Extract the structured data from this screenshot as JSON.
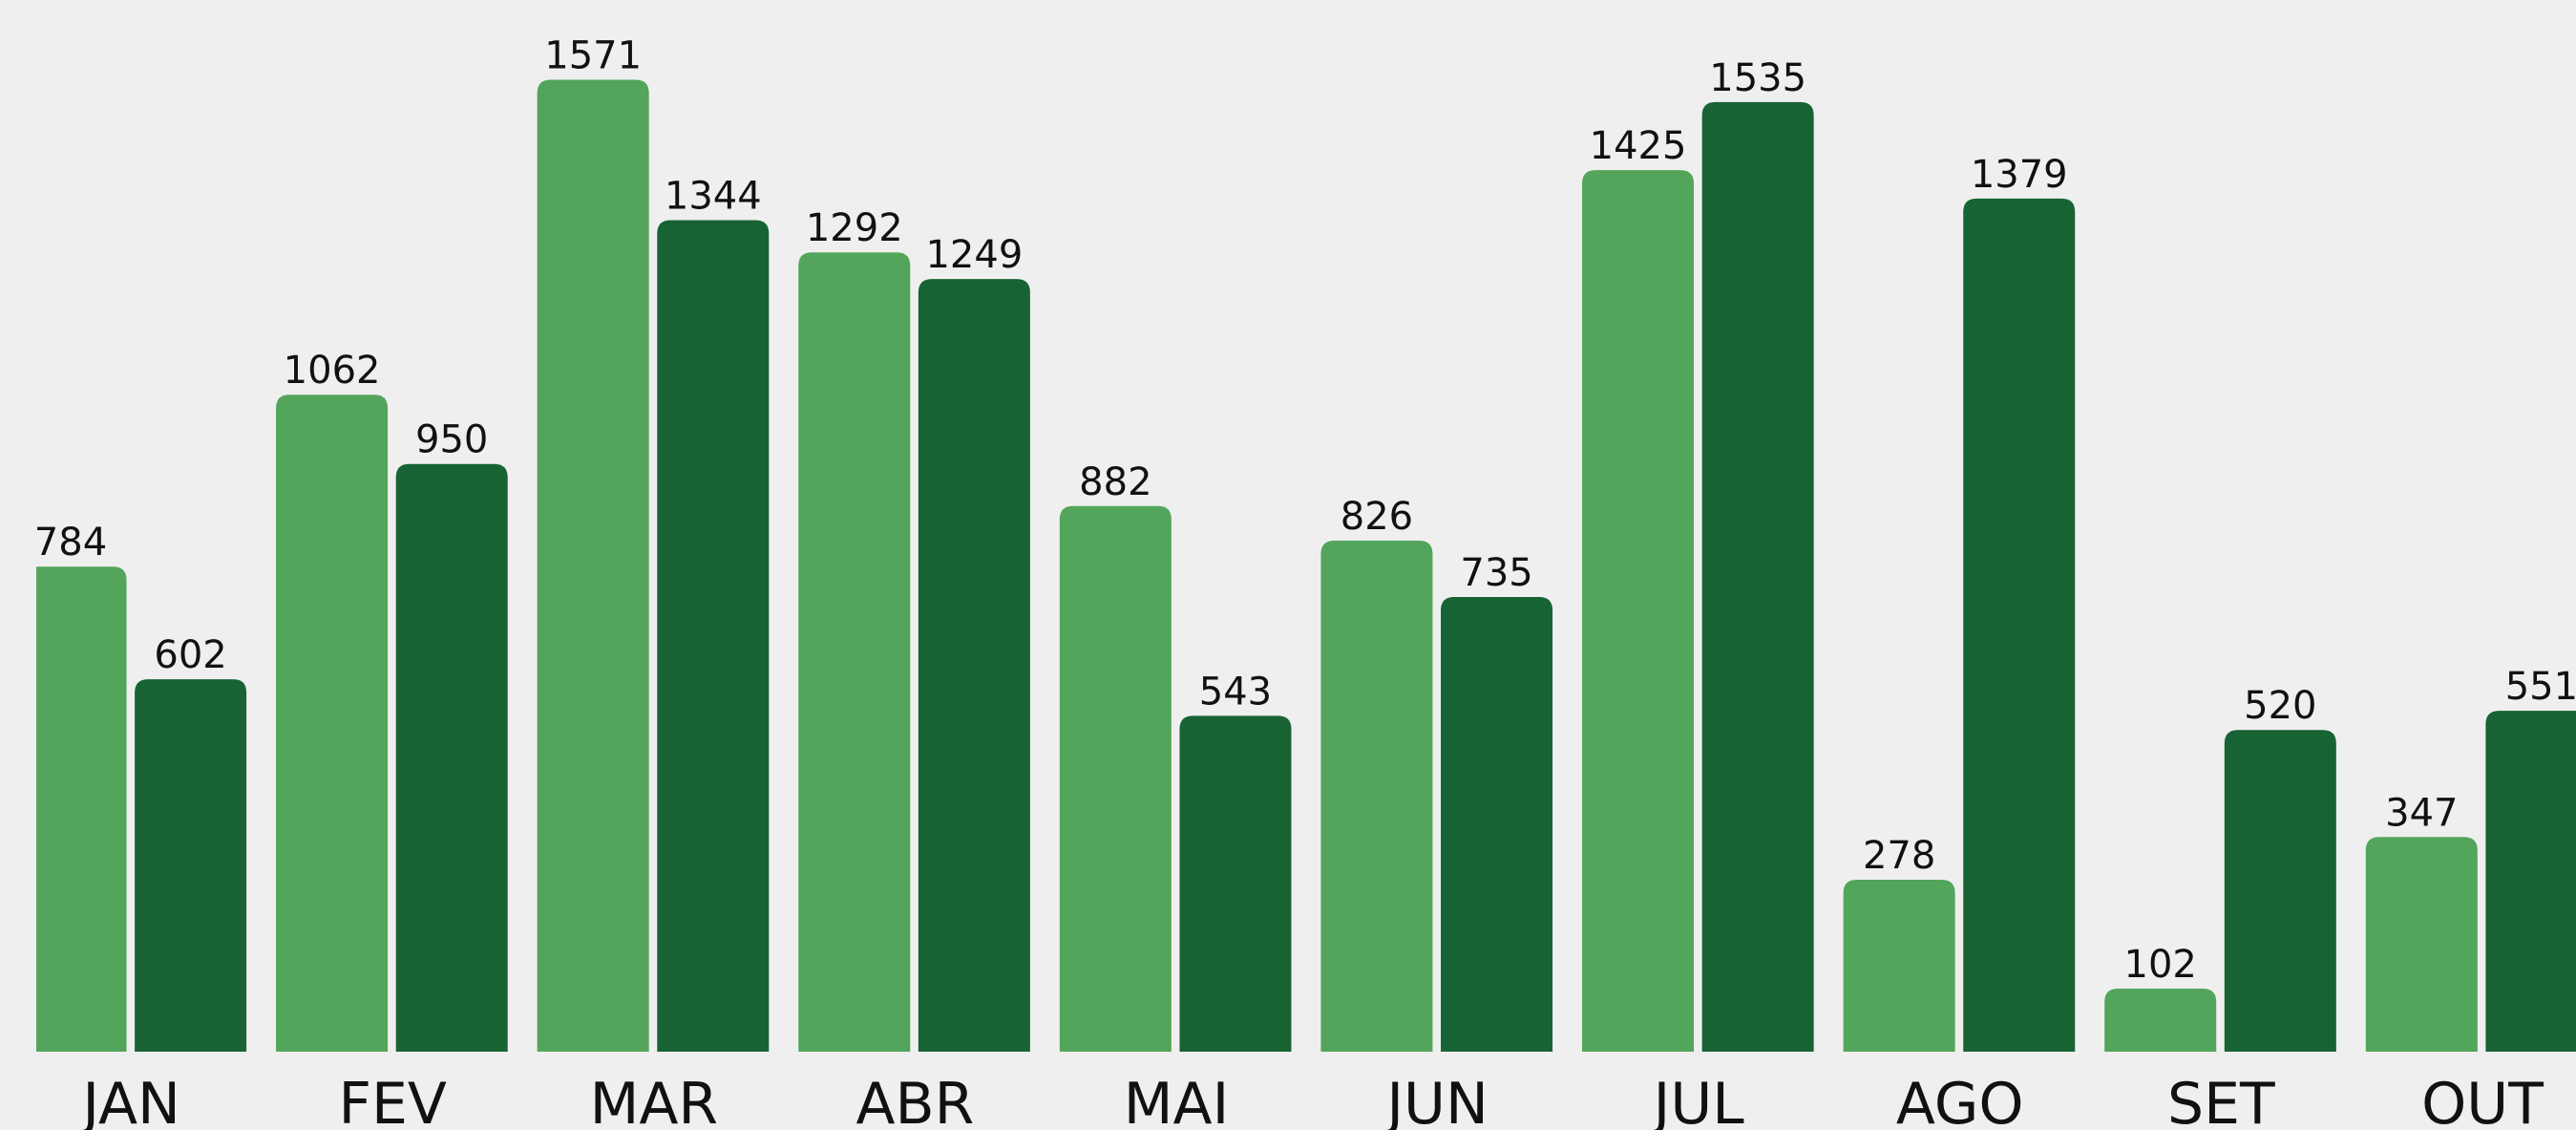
{
  "chart_data": {
    "type": "bar",
    "categories": [
      "JAN",
      "FEV",
      "MAR",
      "ABR",
      "MAI",
      "JUN",
      "JUL",
      "AGO",
      "SET",
      "OUT"
    ],
    "series": [
      {
        "color": "#52a55a",
        "values": [
          784,
          1062,
          1571,
          1292,
          882,
          826,
          1425,
          278,
          102,
          347
        ]
      },
      {
        "color": "#176334",
        "values": [
          602,
          950,
          1344,
          1249,
          543,
          735,
          1535,
          1379,
          520,
          551
        ]
      }
    ],
    "ylim": [
      0,
      1700
    ]
  }
}
